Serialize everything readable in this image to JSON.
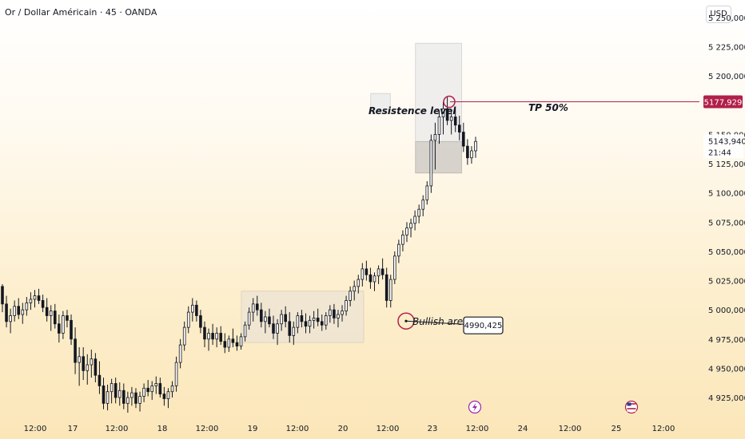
{
  "header": {
    "symbol_title": "Or / Dollar Américain · 45 · OANDA",
    "currency": "USD"
  },
  "annotations": {
    "resistance": "Resistence level",
    "tp": "TP 50%",
    "bullish": "Bullish area",
    "bullish_price": "4990,425",
    "current_price": "5177,929",
    "last_price": "5143,940",
    "countdown": "21:44"
  },
  "colors": {
    "accent": "#b0204a",
    "candle": "#131722",
    "axis_text": "#131722"
  },
  "icons": [
    "lightning-event-icon",
    "us-flag-event-icon"
  ],
  "chart_data": {
    "type": "candlestick",
    "title": "Or / Dollar Américain · 45 · OANDA",
    "ylim": [
      4910,
      5265
    ],
    "y_ticks": [
      {
        "v": 5250,
        "label": "5 250,000"
      },
      {
        "v": 5225,
        "label": "5 225,000"
      },
      {
        "v": 5200,
        "label": "5 200,000"
      },
      {
        "v": 5150,
        "label": "5 150,000"
      },
      {
        "v": 5125,
        "label": "5 125,000"
      },
      {
        "v": 5100,
        "label": "5 100,000"
      },
      {
        "v": 5075,
        "label": "5 075,000"
      },
      {
        "v": 5050,
        "label": "5 050,000"
      },
      {
        "v": 5025,
        "label": "5 025,000"
      },
      {
        "v": 5000,
        "label": "5 000,000"
      },
      {
        "v": 4975,
        "label": "4 975,000"
      },
      {
        "v": 4950,
        "label": "4 950,000"
      },
      {
        "v": 4925,
        "label": "4 925,000"
      }
    ],
    "x_labels": [
      "12:00",
      "17",
      "12:00",
      "18",
      "12:00",
      "19",
      "12:00",
      "20",
      "12:00",
      "23",
      "12:00",
      "24",
      "12:00",
      "25",
      "12:00"
    ],
    "levels": {
      "current": 5177.929,
      "last": 5143.94,
      "bullish": 4990.425,
      "resistance": 5177.929
    },
    "zones": [
      {
        "name": "bullish-area",
        "from_bar": 0.345,
        "to_bar": 0.52,
        "low": 4972,
        "high": 5016
      },
      {
        "name": "resistance-box",
        "from_bar": 0.53,
        "to_bar": 0.558,
        "low": 5168,
        "high": 5185
      },
      {
        "name": "tp-box",
        "from_bar": 0.594,
        "to_bar": 0.66,
        "low": 5117,
        "high": 5228
      }
    ],
    "candles": [
      [
        5020,
        5022,
        4998,
        5005
      ],
      [
        5005,
        5012,
        4985,
        4990
      ],
      [
        4990,
        5001,
        4980,
        4995
      ],
      [
        4995,
        5008,
        4990,
        5003
      ],
      [
        5003,
        5010,
        4992,
        4996
      ],
      [
        4996,
        5006,
        4988,
        5000
      ],
      [
        5000,
        5011,
        4995,
        5006
      ],
      [
        5006,
        5015,
        5000,
        5009
      ],
      [
        5009,
        5017,
        5002,
        5012
      ],
      [
        5012,
        5018,
        5005,
        5008
      ],
      [
        5008,
        5013,
        4998,
        5002
      ],
      [
        5002,
        5010,
        4990,
        4995
      ],
      [
        4995,
        5004,
        4982,
        4999
      ],
      [
        4999,
        5005,
        4984,
        4988
      ],
      [
        4988,
        4996,
        4972,
        4980
      ],
      [
        4980,
        4999,
        4975,
        4995
      ],
      [
        4995,
        5000,
        4985,
        4991
      ],
      [
        4991,
        4996,
        4970,
        4975
      ],
      [
        4975,
        4985,
        4945,
        4955
      ],
      [
        4955,
        4968,
        4935,
        4960
      ],
      [
        4960,
        4968,
        4940,
        4948
      ],
      [
        4948,
        4962,
        4936,
        4953
      ],
      [
        4953,
        4966,
        4942,
        4958
      ],
      [
        4958,
        4963,
        4938,
        4944
      ],
      [
        4944,
        4956,
        4928,
        4935
      ],
      [
        4935,
        4942,
        4915,
        4920
      ],
      [
        4920,
        4936,
        4914,
        4930
      ],
      [
        4930,
        4941,
        4920,
        4937
      ],
      [
        4937,
        4942,
        4920,
        4925
      ],
      [
        4925,
        4938,
        4918,
        4931
      ],
      [
        4931,
        4937,
        4915,
        4920
      ],
      [
        4920,
        4930,
        4912,
        4925
      ],
      [
        4925,
        4934,
        4918,
        4929
      ],
      [
        4929,
        4933,
        4916,
        4920
      ],
      [
        4920,
        4930,
        4913,
        4926
      ],
      [
        4926,
        4937,
        4921,
        4933
      ],
      [
        4933,
        4940,
        4926,
        4930
      ],
      [
        4930,
        4939,
        4923,
        4935
      ],
      [
        4935,
        4943,
        4928,
        4937
      ],
      [
        4937,
        4942,
        4925,
        4928
      ],
      [
        4928,
        4934,
        4918,
        4924
      ],
      [
        4924,
        4933,
        4916,
        4930
      ],
      [
        4930,
        4939,
        4925,
        4935
      ],
      [
        4935,
        4960,
        4930,
        4955
      ],
      [
        4955,
        4975,
        4950,
        4970
      ],
      [
        4970,
        4990,
        4965,
        4985
      ],
      [
        4985,
        5003,
        4980,
        4998
      ],
      [
        4998,
        5010,
        4990,
        5004
      ],
      [
        5004,
        5008,
        4990,
        4995
      ],
      [
        4995,
        5000,
        4980,
        4985
      ],
      [
        4985,
        4990,
        4968,
        4975
      ],
      [
        4975,
        4984,
        4965,
        4980
      ],
      [
        4980,
        4988,
        4970,
        4975
      ],
      [
        4975,
        4985,
        4968,
        4980
      ],
      [
        4980,
        4986,
        4970,
        4973
      ],
      [
        4973,
        4980,
        4963,
        4968
      ],
      [
        4968,
        4978,
        4964,
        4975
      ],
      [
        4975,
        4984,
        4968,
        4972
      ],
      [
        4972,
        4978,
        4965,
        4969
      ],
      [
        4969,
        4980,
        4966,
        4977
      ],
      [
        4977,
        4990,
        4973,
        4987
      ],
      [
        4987,
        5002,
        4983,
        4998
      ],
      [
        4998,
        5010,
        4990,
        5005
      ],
      [
        5005,
        5012,
        4995,
        5000
      ],
      [
        5000,
        5006,
        4985,
        4990
      ],
      [
        4990,
        4999,
        4980,
        4994
      ],
      [
        4994,
        5001,
        4985,
        4988
      ],
      [
        4988,
        4995,
        4975,
        4980
      ],
      [
        4980,
        4992,
        4970,
        4988
      ],
      [
        4988,
        5000,
        4982,
        4996
      ],
      [
        4996,
        5003,
        4985,
        4990
      ],
      [
        4990,
        4998,
        4972,
        4978
      ],
      [
        4978,
        4990,
        4970,
        4985
      ],
      [
        4985,
        4998,
        4980,
        4995
      ],
      [
        4995,
        5000,
        4985,
        4990
      ],
      [
        4990,
        4997,
        4980,
        4986
      ],
      [
        4986,
        4995,
        4980,
        4991
      ],
      [
        4991,
        4999,
        4984,
        4993
      ],
      [
        4993,
        5001,
        4986,
        4990
      ],
      [
        4990,
        4996,
        4982,
        4987
      ],
      [
        4987,
        4998,
        4983,
        4995
      ],
      [
        4995,
        5004,
        4989,
        5000
      ],
      [
        5000,
        5005,
        4988,
        4993
      ],
      [
        4993,
        5000,
        4985,
        4996
      ],
      [
        4996,
        5004,
        4990,
        4999
      ],
      [
        4999,
        5012,
        4995,
        5008
      ],
      [
        5008,
        5020,
        5003,
        5016
      ],
      [
        5016,
        5025,
        5008,
        5020
      ],
      [
        5020,
        5030,
        5014,
        5026
      ],
      [
        5026,
        5040,
        5020,
        5035
      ],
      [
        5035,
        5042,
        5025,
        5030
      ],
      [
        5030,
        5036,
        5018,
        5024
      ],
      [
        5024,
        5032,
        5016,
        5029
      ],
      [
        5029,
        5038,
        5022,
        5035
      ],
      [
        5035,
        5044,
        5026,
        5030
      ],
      [
        5030,
        5036,
        5002,
        5008
      ],
      [
        5008,
        5030,
        5002,
        5026
      ],
      [
        5026,
        5050,
        5022,
        5046
      ],
      [
        5046,
        5060,
        5040,
        5056
      ],
      [
        5056,
        5068,
        5050,
        5064
      ],
      [
        5064,
        5075,
        5058,
        5070
      ],
      [
        5070,
        5078,
        5062,
        5074
      ],
      [
        5074,
        5085,
        5068,
        5080
      ],
      [
        5080,
        5090,
        5074,
        5086
      ],
      [
        5086,
        5098,
        5080,
        5094
      ],
      [
        5094,
        5110,
        5090,
        5106
      ],
      [
        5106,
        5150,
        5100,
        5145
      ],
      [
        5145,
        5160,
        5120,
        5150
      ],
      [
        5150,
        5170,
        5142,
        5165
      ],
      [
        5165,
        5178,
        5150,
        5172
      ],
      [
        5172,
        5182,
        5158,
        5162
      ],
      [
        5162,
        5170,
        5150,
        5165
      ],
      [
        5165,
        5172,
        5152,
        5158
      ],
      [
        5158,
        5166,
        5145,
        5152
      ],
      [
        5152,
        5160,
        5135,
        5140
      ],
      [
        5140,
        5146,
        5124,
        5130
      ],
      [
        5130,
        5140,
        5125,
        5136
      ],
      [
        5136,
        5148,
        5130,
        5144
      ]
    ]
  }
}
